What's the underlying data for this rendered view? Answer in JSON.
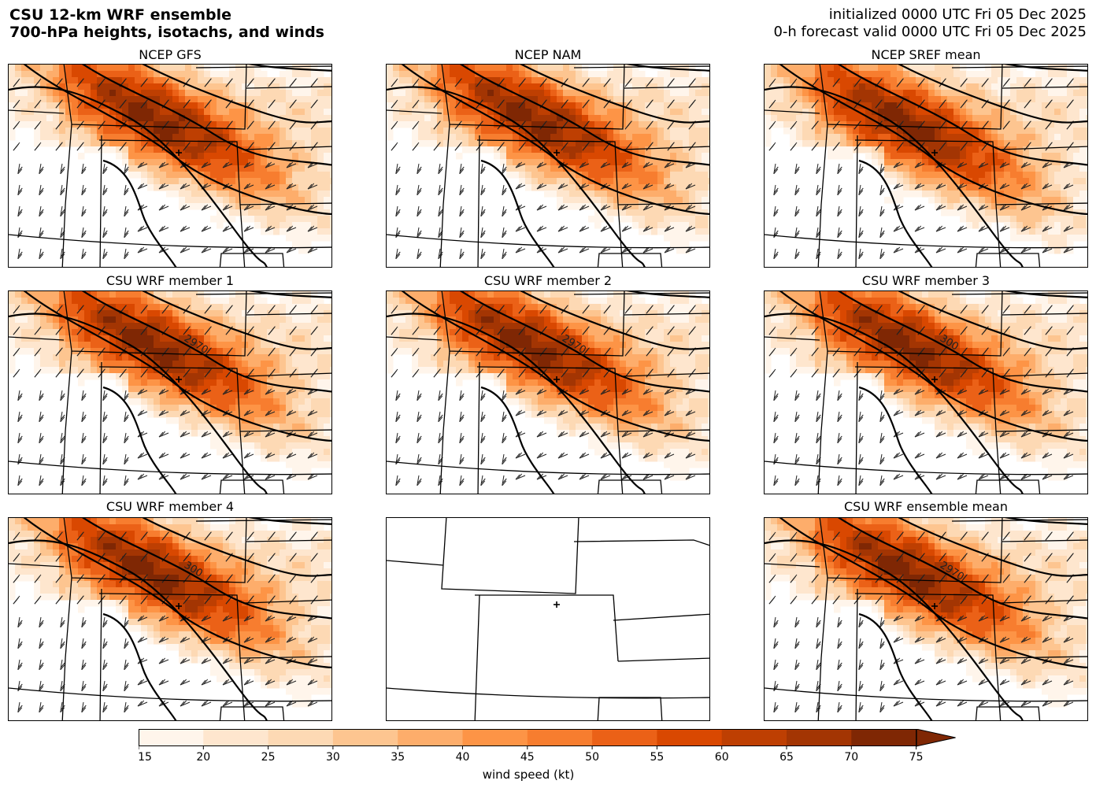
{
  "header": {
    "title_line1": "CSU 12-km WRF ensemble",
    "title_line2": "700-hPa heights, isotachs, and winds",
    "init_line": "initialized 0000 UTC Fri 05 Dec 2025",
    "valid_line": "0-h forecast valid 0000 UTC Fri 05 Dec 2025"
  },
  "panels": [
    {
      "title": "NCEP GFS",
      "contour_label": "",
      "filled": true,
      "jet": [
        0.47,
        0.27
      ]
    },
    {
      "title": "NCEP NAM",
      "contour_label": "",
      "filled": true,
      "jet": [
        0.47,
        0.27
      ]
    },
    {
      "title": "NCEP SREF mean",
      "contour_label": "",
      "filled": true,
      "jet": [
        0.47,
        0.32
      ]
    },
    {
      "title": "CSU WRF member 1",
      "contour_label": "2970",
      "filled": true,
      "jet": [
        0.46,
        0.27
      ]
    },
    {
      "title": "CSU WRF member 2",
      "contour_label": "2970",
      "filled": true,
      "jet": [
        0.46,
        0.27
      ]
    },
    {
      "title": "CSU WRF member 3",
      "contour_label": "300",
      "filled": true,
      "jet": [
        0.46,
        0.27
      ]
    },
    {
      "title": "CSU WRF member 4",
      "contour_label": "300",
      "filled": true,
      "jet": [
        0.46,
        0.27
      ]
    },
    {
      "title": "",
      "contour_label": "",
      "filled": false,
      "jet": [
        0.5,
        0.5
      ]
    },
    {
      "title": "CSU WRF ensemble mean",
      "contour_label": "2970",
      "filled": true,
      "jet": [
        0.46,
        0.27
      ]
    }
  ],
  "colorbar": {
    "ticks": [
      "15",
      "20",
      "25",
      "30",
      "35",
      "40",
      "45",
      "50",
      "55",
      "60",
      "65",
      "70",
      "75"
    ],
    "colors": [
      "#fff5eb",
      "#fee6ce",
      "#fdd9b4",
      "#fdc590",
      "#fdad6b",
      "#fd9446",
      "#f77d2f",
      "#eb6117",
      "#d94801",
      "#be3f02",
      "#a33503",
      "#7f2704"
    ],
    "extend_color": "#7f2704",
    "label": "wind speed (kt)"
  }
}
